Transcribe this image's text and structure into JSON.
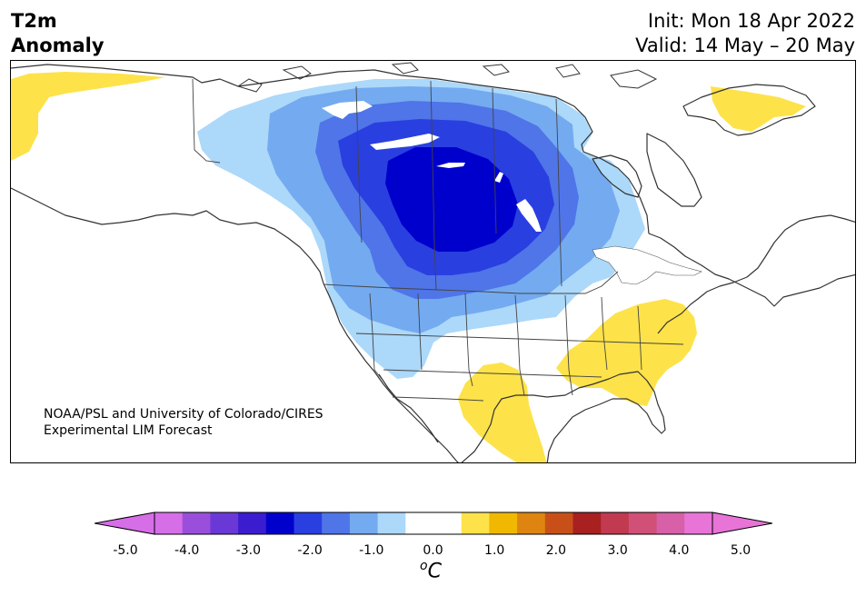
{
  "title": {
    "left_line1": "T2m",
    "left_line2": "Anomaly",
    "init": "Init: Mon 18 Apr 2022",
    "valid": "Valid: 14 May – 20 May"
  },
  "credit": {
    "line1": "NOAA/PSL and University of Colorado/CIRES",
    "line2": "Experimental LIM Forecast"
  },
  "colorbar": {
    "ticks": [
      "-5.0",
      "-4.0",
      "-3.0",
      "-2.0",
      "-1.0",
      "0.0",
      "1.0",
      "2.0",
      "3.0",
      "4.0",
      "5.0"
    ],
    "unit_base": "C",
    "unit_sup": "o",
    "colors": [
      "#d66ee8",
      "#9a4fdc",
      "#6a38d6",
      "#3b1ccf",
      "#0000cc",
      "#2a3fe0",
      "#4f75e8",
      "#74aaf0",
      "#acd8fa",
      "#ffffff",
      "#ffffff",
      "#fde24a",
      "#f0b800",
      "#dd8510",
      "#c85018",
      "#a82020",
      "#c23a50",
      "#d05078",
      "#d860a8",
      "#e874d8"
    ],
    "under_color": "#d66ee8",
    "over_color": "#e874d8"
  },
  "map": {
    "land_color": "#ffffff",
    "coast_color": "#333333",
    "anomaly_levels": [
      "-0.5",
      "-1.0",
      "-1.5",
      "-2.0",
      "-2.5",
      "0.5"
    ],
    "level_colors": [
      "#acd8fa",
      "#74aaf0",
      "#4f75e8",
      "#2a3fe0",
      "#0000cc",
      "#fde24a"
    ]
  }
}
